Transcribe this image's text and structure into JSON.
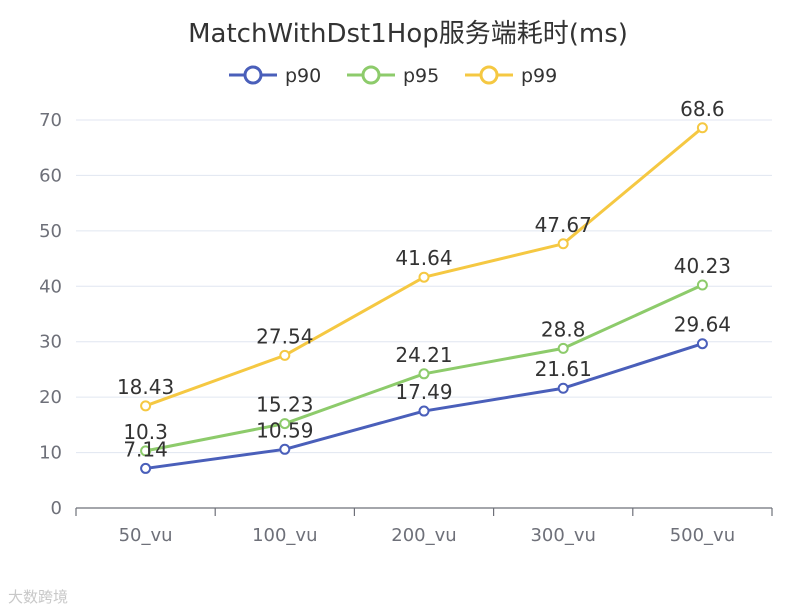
{
  "watermark": "大数跨境",
  "chart_data": {
    "type": "line",
    "title": "MatchWithDst1Hop服务端耗时(ms)",
    "categories": [
      "50_vu",
      "100_vu",
      "200_vu",
      "300_vu",
      "500_vu"
    ],
    "series": [
      {
        "name": "p90",
        "color": "#4a5fba",
        "values": [
          7.14,
          10.59,
          17.49,
          21.61,
          29.64
        ]
      },
      {
        "name": "p95",
        "color": "#8dcb6b",
        "values": [
          10.3,
          15.23,
          24.21,
          28.8,
          40.23
        ]
      },
      {
        "name": "p99",
        "color": "#f5c842",
        "values": [
          18.43,
          27.54,
          41.64,
          47.67,
          68.6
        ]
      }
    ],
    "ylim": [
      0,
      70
    ],
    "yticks": [
      0,
      10,
      20,
      30,
      40,
      50,
      60,
      70
    ],
    "grid": true,
    "legend_position": "top-center"
  }
}
